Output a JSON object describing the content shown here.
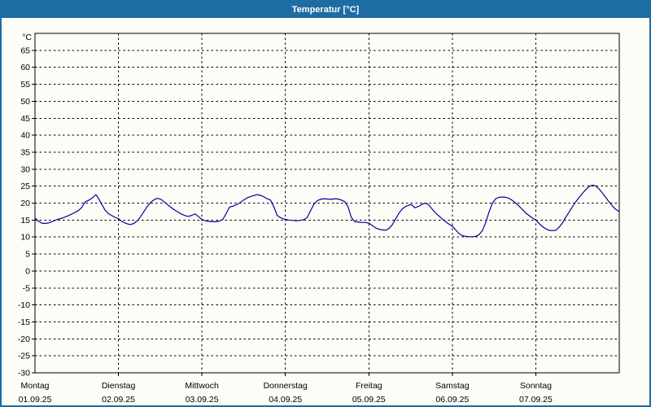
{
  "window": {
    "title": "Temperatur [°C]"
  },
  "colors": {
    "titlebar_bg": "#1d6ca3",
    "title_text": "#ffffff",
    "window_border": "#1d6ca3",
    "background": "#fcfdf7",
    "plot_border": "#000000",
    "gridline": "#000000",
    "tick_label": "#000000",
    "line": "#0000a0"
  },
  "chart_data": {
    "type": "line",
    "title": "Temperatur [°C]",
    "ylabel": "°C",
    "xlabel": "",
    "ylim": [
      -30,
      70
    ],
    "ytick_step": 5,
    "ytick_label_min": -30,
    "ytick_label_max": 65,
    "grid": "dashed",
    "legend": "none",
    "x_days": [
      {
        "name": "Montag",
        "date": "01.09.25"
      },
      {
        "name": "Dienstag",
        "date": "02.09.25"
      },
      {
        "name": "Mittwoch",
        "date": "03.09.25"
      },
      {
        "name": "Donnerstag",
        "date": "04.09.25"
      },
      {
        "name": "Freitag",
        "date": "05.09.25"
      },
      {
        "name": "Samstag",
        "date": "06.09.25"
      },
      {
        "name": "Sonntag",
        "date": "07.09.25"
      }
    ],
    "x_range_days": [
      0,
      7
    ],
    "series": [
      {
        "name": "Temperatur",
        "unit": "°C",
        "color": "#0000a0",
        "points_day_temp": [
          [
            0.0,
            15.6
          ],
          [
            0.04,
            14.7
          ],
          [
            0.08,
            14.1
          ],
          [
            0.13,
            14.0
          ],
          [
            0.17,
            14.2
          ],
          [
            0.22,
            14.7
          ],
          [
            0.27,
            15.2
          ],
          [
            0.33,
            15.6
          ],
          [
            0.4,
            16.3
          ],
          [
            0.46,
            17.0
          ],
          [
            0.52,
            17.8
          ],
          [
            0.56,
            18.7
          ],
          [
            0.6,
            20.3
          ],
          [
            0.65,
            20.9
          ],
          [
            0.69,
            21.6
          ],
          [
            0.73,
            22.5
          ],
          [
            0.76,
            21.4
          ],
          [
            0.8,
            19.6
          ],
          [
            0.84,
            17.9
          ],
          [
            0.88,
            16.9
          ],
          [
            0.92,
            16.3
          ],
          [
            0.96,
            15.8
          ],
          [
            1.0,
            15.4
          ],
          [
            1.04,
            14.6
          ],
          [
            1.08,
            14.1
          ],
          [
            1.12,
            13.8
          ],
          [
            1.15,
            13.7
          ],
          [
            1.19,
            14.1
          ],
          [
            1.23,
            14.9
          ],
          [
            1.27,
            16.2
          ],
          [
            1.31,
            17.7
          ],
          [
            1.35,
            19.2
          ],
          [
            1.4,
            20.5
          ],
          [
            1.44,
            21.2
          ],
          [
            1.47,
            21.4
          ],
          [
            1.51,
            21.1
          ],
          [
            1.55,
            20.3
          ],
          [
            1.59,
            19.5
          ],
          [
            1.63,
            18.7
          ],
          [
            1.67,
            18.0
          ],
          [
            1.71,
            17.4
          ],
          [
            1.75,
            16.8
          ],
          [
            1.8,
            16.3
          ],
          [
            1.84,
            16.1
          ],
          [
            1.88,
            16.4
          ],
          [
            1.92,
            16.8
          ],
          [
            1.96,
            16.0
          ],
          [
            2.0,
            15.2
          ],
          [
            2.04,
            14.8
          ],
          [
            2.08,
            14.6
          ],
          [
            2.13,
            14.5
          ],
          [
            2.17,
            14.5
          ],
          [
            2.21,
            14.7
          ],
          [
            2.25,
            15.2
          ],
          [
            2.29,
            16.9
          ],
          [
            2.33,
            18.8
          ],
          [
            2.37,
            19.1
          ],
          [
            2.42,
            19.6
          ],
          [
            2.46,
            20.2
          ],
          [
            2.5,
            20.9
          ],
          [
            2.54,
            21.5
          ],
          [
            2.58,
            21.9
          ],
          [
            2.62,
            22.2
          ],
          [
            2.66,
            22.5
          ],
          [
            2.7,
            22.3
          ],
          [
            2.74,
            21.9
          ],
          [
            2.78,
            21.3
          ],
          [
            2.82,
            20.9
          ],
          [
            2.86,
            19.0
          ],
          [
            2.9,
            16.4
          ],
          [
            2.94,
            15.7
          ],
          [
            2.97,
            15.4
          ],
          [
            3.0,
            15.2
          ],
          [
            3.04,
            15.0
          ],
          [
            3.09,
            14.9
          ],
          [
            3.13,
            14.8
          ],
          [
            3.17,
            14.9
          ],
          [
            3.22,
            15.1
          ],
          [
            3.26,
            15.7
          ],
          [
            3.3,
            17.7
          ],
          [
            3.34,
            19.6
          ],
          [
            3.38,
            20.7
          ],
          [
            3.42,
            21.1
          ],
          [
            3.46,
            21.3
          ],
          [
            3.5,
            21.2
          ],
          [
            3.55,
            21.1
          ],
          [
            3.59,
            21.3
          ],
          [
            3.63,
            21.2
          ],
          [
            3.67,
            20.9
          ],
          [
            3.71,
            20.4
          ],
          [
            3.75,
            19.0
          ],
          [
            3.79,
            15.8
          ],
          [
            3.83,
            14.5
          ],
          [
            3.88,
            14.4
          ],
          [
            3.92,
            14.3
          ],
          [
            3.96,
            14.3
          ],
          [
            4.0,
            14.1
          ],
          [
            4.04,
            13.4
          ],
          [
            4.08,
            12.7
          ],
          [
            4.12,
            12.3
          ],
          [
            4.16,
            12.1
          ],
          [
            4.2,
            12.0
          ],
          [
            4.24,
            12.5
          ],
          [
            4.28,
            13.6
          ],
          [
            4.32,
            15.3
          ],
          [
            4.36,
            17.0
          ],
          [
            4.4,
            18.3
          ],
          [
            4.44,
            19.0
          ],
          [
            4.48,
            19.4
          ],
          [
            4.51,
            19.6
          ],
          [
            4.55,
            18.6
          ],
          [
            4.6,
            19.1
          ],
          [
            4.64,
            19.7
          ],
          [
            4.68,
            20.0
          ],
          [
            4.72,
            19.4
          ],
          [
            4.76,
            18.2
          ],
          [
            4.8,
            17.1
          ],
          [
            4.84,
            16.2
          ],
          [
            4.88,
            15.3
          ],
          [
            4.92,
            14.5
          ],
          [
            4.96,
            13.8
          ],
          [
            5.0,
            13.2
          ],
          [
            5.04,
            12.1
          ],
          [
            5.08,
            11.0
          ],
          [
            5.12,
            10.4
          ],
          [
            5.16,
            10.2
          ],
          [
            5.2,
            10.1
          ],
          [
            5.24,
            10.1
          ],
          [
            5.28,
            10.2
          ],
          [
            5.32,
            10.7
          ],
          [
            5.36,
            11.9
          ],
          [
            5.4,
            14.3
          ],
          [
            5.44,
            17.4
          ],
          [
            5.48,
            20.0
          ],
          [
            5.52,
            21.3
          ],
          [
            5.56,
            21.7
          ],
          [
            5.6,
            21.8
          ],
          [
            5.64,
            21.7
          ],
          [
            5.68,
            21.4
          ],
          [
            5.72,
            20.8
          ],
          [
            5.76,
            20.0
          ],
          [
            5.8,
            19.1
          ],
          [
            5.84,
            18.1
          ],
          [
            5.88,
            17.1
          ],
          [
            5.92,
            16.3
          ],
          [
            5.96,
            15.6
          ],
          [
            6.0,
            15.0
          ],
          [
            6.04,
            14.0
          ],
          [
            6.08,
            13.1
          ],
          [
            6.12,
            12.4
          ],
          [
            6.16,
            12.0
          ],
          [
            6.2,
            11.9
          ],
          [
            6.24,
            12.0
          ],
          [
            6.28,
            12.9
          ],
          [
            6.32,
            14.2
          ],
          [
            6.36,
            15.9
          ],
          [
            6.4,
            17.4
          ],
          [
            6.44,
            19.0
          ],
          [
            6.48,
            20.4
          ],
          [
            6.52,
            21.7
          ],
          [
            6.56,
            22.9
          ],
          [
            6.6,
            24.0
          ],
          [
            6.64,
            24.9
          ],
          [
            6.68,
            25.3
          ],
          [
            6.72,
            25.0
          ],
          [
            6.76,
            24.1
          ],
          [
            6.8,
            22.9
          ],
          [
            6.84,
            21.6
          ],
          [
            6.88,
            20.3
          ],
          [
            6.92,
            19.1
          ],
          [
            6.96,
            18.1
          ],
          [
            7.0,
            17.5
          ]
        ]
      }
    ]
  }
}
